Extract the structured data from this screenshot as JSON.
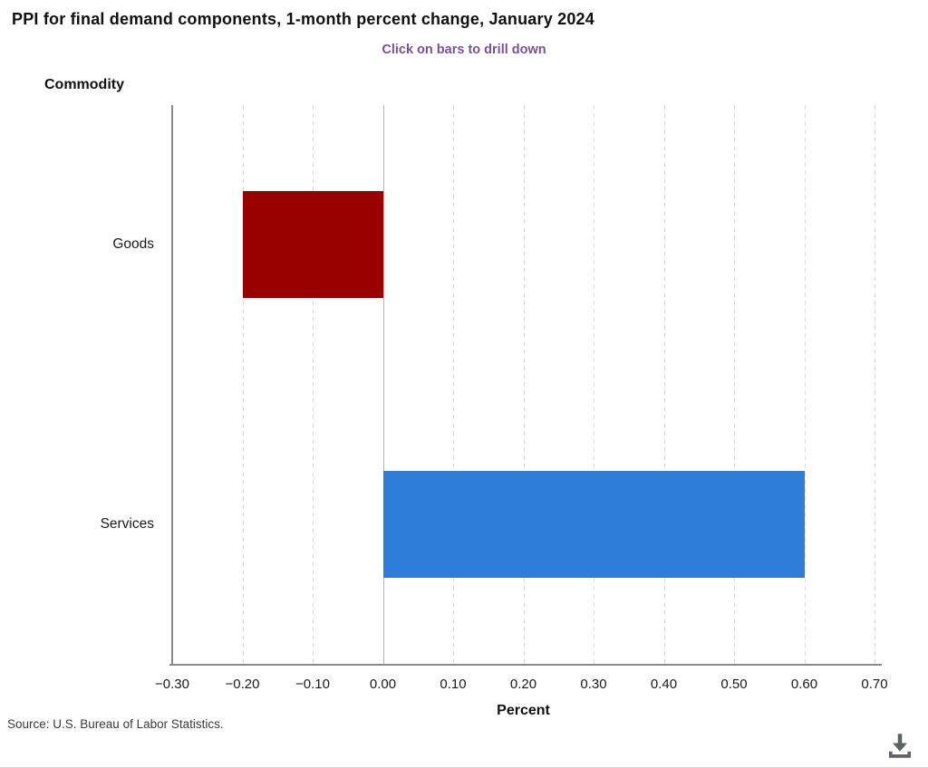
{
  "header": {
    "title": "PPI for final demand components, 1-month percent change, January 2024",
    "subtitle": "Click on bars to drill down"
  },
  "chart_data": {
    "type": "bar",
    "orientation": "horizontal",
    "title": "PPI for final demand components, 1-month percent change, January 2024",
    "subtitle": "Click on bars to drill down",
    "y_axis_title": "Commodity",
    "xlabel": "Percent",
    "categories": [
      "Goods",
      "Services"
    ],
    "values": [
      -0.2,
      0.6
    ],
    "colors": [
      "#990000",
      "#2E7ED9"
    ],
    "xlim": [
      -0.3,
      0.7
    ],
    "xticks": [
      {
        "value": -0.3,
        "label": "−0.30"
      },
      {
        "value": -0.2,
        "label": "−0.20"
      },
      {
        "value": -0.1,
        "label": "−0.10"
      },
      {
        "value": 0.0,
        "label": "0.00"
      },
      {
        "value": 0.1,
        "label": "0.10"
      },
      {
        "value": 0.2,
        "label": "0.20"
      },
      {
        "value": 0.3,
        "label": "0.30"
      },
      {
        "value": 0.4,
        "label": "0.40"
      },
      {
        "value": 0.5,
        "label": "0.50"
      },
      {
        "value": 0.6,
        "label": "0.60"
      },
      {
        "value": 0.7,
        "label": "0.70"
      }
    ],
    "grid": "vertical-dashed",
    "zero_line": true,
    "legend": "none"
  },
  "footer": {
    "source": "Source: U.S. Bureau of Labor Statistics."
  },
  "icons": {
    "download": "download-icon"
  },
  "colors": {
    "title_text": "#111111",
    "subtitle_text": "#7a5195",
    "bar_negative": "#990000",
    "bar_positive": "#2E7ED9",
    "axis_line": "#8a8a8a",
    "gridline": "#dedede",
    "zero_line": "#b5b5b5"
  }
}
